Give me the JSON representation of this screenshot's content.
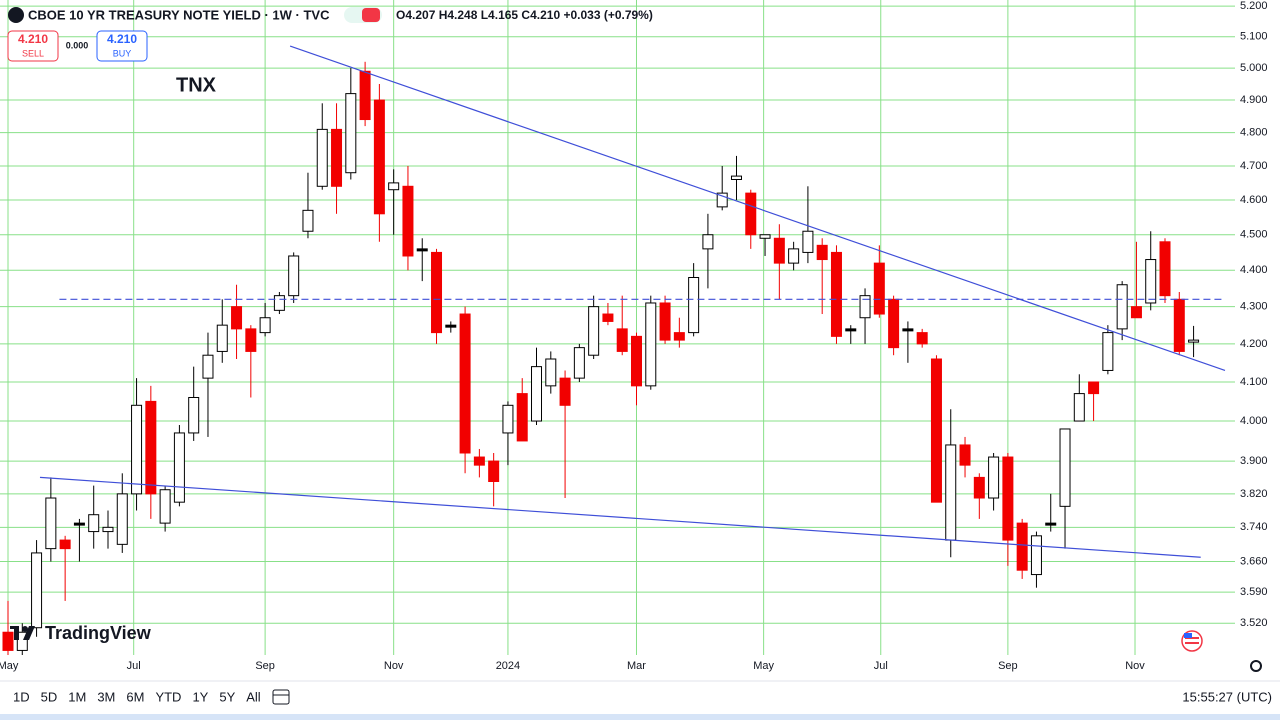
{
  "chart_data": {
    "type": "candlestick",
    "title": "CBOE 10 YR TREASURY NOTE YIELD · 1W · TVC",
    "ohlc_text": "O4.207 H4.248 L4.165 C4.210 +0.033 (+0.79%)",
    "sell_price": "4.210",
    "sell_label": "SELL",
    "spread": "0.000",
    "buy_price": "4.210",
    "buy_label": "BUY",
    "annotation": "TNX",
    "logo": "TradingView",
    "timeframes": [
      "1D",
      "5D",
      "1M",
      "3M",
      "6M",
      "YTD",
      "1Y",
      "5Y",
      "All"
    ],
    "clock": "15:55:27 (UTC)",
    "log_scale": true,
    "grid": true,
    "colors": {
      "up": "#ffffff",
      "down": "#f20000",
      "border": "#000000",
      "grid": "#88e088",
      "trendline": "#3f4fd8"
    },
    "xlim": [
      -0.56,
      85.9
    ],
    "xticks": [
      {
        "value": 0,
        "label": "May"
      },
      {
        "value": 8.8,
        "label": "Jul"
      },
      {
        "value": 18.0,
        "label": "Sep"
      },
      {
        "value": 27.0,
        "label": "Nov"
      },
      {
        "value": 35.0,
        "label": "2024"
      },
      {
        "value": 44.0,
        "label": "Mar"
      },
      {
        "value": 52.9,
        "label": "May"
      },
      {
        "value": 61.1,
        "label": "Jul"
      },
      {
        "value": 70.0,
        "label": "Sep"
      },
      {
        "value": 78.9,
        "label": "Nov"
      }
    ],
    "ylim": [
      3.45,
      5.22
    ],
    "yticks": [
      {
        "value": 5.2,
        "label": "5.200"
      },
      {
        "value": 5.1,
        "label": "5.100"
      },
      {
        "value": 5.0,
        "label": "5.000"
      },
      {
        "value": 4.9,
        "label": "4.900"
      },
      {
        "value": 4.8,
        "label": "4.800"
      },
      {
        "value": 4.7,
        "label": "4.700"
      },
      {
        "value": 4.6,
        "label": "4.600"
      },
      {
        "value": 4.5,
        "label": "4.500"
      },
      {
        "value": 4.4,
        "label": "4.400"
      },
      {
        "value": 4.3,
        "label": "4.300"
      },
      {
        "value": 4.2,
        "label": "4.200"
      },
      {
        "value": 4.1,
        "label": "4.100"
      },
      {
        "value": 4.0,
        "label": "4.000"
      },
      {
        "value": 3.9,
        "label": "3.900"
      },
      {
        "value": 3.82,
        "label": "3.820"
      },
      {
        "value": 3.74,
        "label": "3.740"
      },
      {
        "value": 3.66,
        "label": "3.660"
      },
      {
        "value": 3.59,
        "label": "3.590"
      },
      {
        "value": 3.52,
        "label": "3.520"
      }
    ],
    "ohlc": [
      [
        3.5,
        3.57,
        3.45,
        3.46
      ],
      [
        3.46,
        3.52,
        3.45,
        3.5
      ],
      [
        3.51,
        3.71,
        3.49,
        3.68
      ],
      [
        3.69,
        3.86,
        3.66,
        3.81
      ],
      [
        3.71,
        3.72,
        3.57,
        3.69
      ],
      [
        3.75,
        3.76,
        3.66,
        3.75
      ],
      [
        3.73,
        3.84,
        3.69,
        3.77
      ],
      [
        3.73,
        3.78,
        3.69,
        3.74
      ],
      [
        3.7,
        3.87,
        3.68,
        3.82
      ],
      [
        3.82,
        4.11,
        3.78,
        4.04
      ],
      [
        4.05,
        4.09,
        3.76,
        3.82
      ],
      [
        3.75,
        3.84,
        3.73,
        3.83
      ],
      [
        3.8,
        3.99,
        3.79,
        3.97
      ],
      [
        3.97,
        4.14,
        3.95,
        4.06
      ],
      [
        4.11,
        4.23,
        3.96,
        4.17
      ],
      [
        4.18,
        4.32,
        4.15,
        4.25
      ],
      [
        4.3,
        4.36,
        4.16,
        4.24
      ],
      [
        4.24,
        4.25,
        4.06,
        4.18
      ],
      [
        4.23,
        4.31,
        4.22,
        4.27
      ],
      [
        4.29,
        4.34,
        4.28,
        4.33
      ],
      [
        4.33,
        4.45,
        4.31,
        4.44
      ],
      [
        4.51,
        4.68,
        4.49,
        4.57
      ],
      [
        4.64,
        4.89,
        4.63,
        4.81
      ],
      [
        4.81,
        4.89,
        4.56,
        4.64
      ],
      [
        4.68,
        5.0,
        4.66,
        4.92
      ],
      [
        4.99,
        5.02,
        4.82,
        4.84
      ],
      [
        4.9,
        4.95,
        4.48,
        4.56
      ],
      [
        4.63,
        4.69,
        4.5,
        4.65
      ],
      [
        4.64,
        4.7,
        4.4,
        4.44
      ],
      [
        4.46,
        4.49,
        4.37,
        4.46
      ],
      [
        4.45,
        4.46,
        4.2,
        4.23
      ],
      [
        4.25,
        4.26,
        4.23,
        4.25
      ],
      [
        4.28,
        4.3,
        3.87,
        3.92
      ],
      [
        3.91,
        3.93,
        3.86,
        3.89
      ],
      [
        3.9,
        3.92,
        3.79,
        3.85
      ],
      [
        3.97,
        4.05,
        3.89,
        4.04
      ],
      [
        4.07,
        4.11,
        3.95,
        3.95
      ],
      [
        4.0,
        4.19,
        3.99,
        4.14
      ],
      [
        4.09,
        4.18,
        4.07,
        4.16
      ],
      [
        4.11,
        4.13,
        3.81,
        4.04
      ],
      [
        4.11,
        4.2,
        4.1,
        4.19
      ],
      [
        4.17,
        4.33,
        4.16,
        4.3
      ],
      [
        4.28,
        4.31,
        4.25,
        4.26
      ],
      [
        4.24,
        4.33,
        4.17,
        4.18
      ],
      [
        4.22,
        4.23,
        4.04,
        4.09
      ],
      [
        4.09,
        4.33,
        4.08,
        4.31
      ],
      [
        4.31,
        4.33,
        4.2,
        4.21
      ],
      [
        4.23,
        4.27,
        4.19,
        4.21
      ],
      [
        4.23,
        4.42,
        4.22,
        4.38
      ],
      [
        4.46,
        4.56,
        4.35,
        4.5
      ],
      [
        4.58,
        4.7,
        4.57,
        4.62
      ],
      [
        4.66,
        4.73,
        4.6,
        4.67
      ],
      [
        4.62,
        4.63,
        4.46,
        4.5
      ],
      [
        4.49,
        4.5,
        4.44,
        4.5
      ],
      [
        4.49,
        4.53,
        4.32,
        4.42
      ],
      [
        4.42,
        4.48,
        4.4,
        4.46
      ],
      [
        4.45,
        4.64,
        4.42,
        4.51
      ],
      [
        4.47,
        4.49,
        4.28,
        4.43
      ],
      [
        4.45,
        4.47,
        4.2,
        4.22
      ],
      [
        4.24,
        4.25,
        4.2,
        4.24
      ],
      [
        4.27,
        4.35,
        4.2,
        4.33
      ],
      [
        4.42,
        4.47,
        4.27,
        4.28
      ],
      [
        4.32,
        4.33,
        4.17,
        4.19
      ],
      [
        4.24,
        4.26,
        4.15,
        4.24
      ],
      [
        4.23,
        4.24,
        4.19,
        4.2
      ],
      [
        4.16,
        4.17,
        3.8,
        3.8
      ],
      [
        3.71,
        4.03,
        3.67,
        3.94
      ],
      [
        3.94,
        3.96,
        3.86,
        3.89
      ],
      [
        3.86,
        3.87,
        3.76,
        3.81
      ],
      [
        3.81,
        3.92,
        3.78,
        3.91
      ],
      [
        3.91,
        3.92,
        3.65,
        3.71
      ],
      [
        3.75,
        3.76,
        3.62,
        3.64
      ],
      [
        3.63,
        3.73,
        3.6,
        3.72
      ],
      [
        3.75,
        3.82,
        3.73,
        3.75
      ],
      [
        3.79,
        3.98,
        3.69,
        3.98
      ],
      [
        4.0,
        4.12,
        4.0,
        4.07
      ],
      [
        4.1,
        4.1,
        4.0,
        4.07
      ],
      [
        4.13,
        4.25,
        4.12,
        4.23
      ],
      [
        4.24,
        4.37,
        4.21,
        4.36
      ],
      [
        4.3,
        4.48,
        4.27,
        4.27
      ],
      [
        4.31,
        4.51,
        4.29,
        4.43
      ],
      [
        4.48,
        4.49,
        4.31,
        4.33
      ],
      [
        4.32,
        4.34,
        4.17,
        4.18
      ],
      [
        4.207,
        4.248,
        4.165,
        4.21
      ]
    ],
    "trendlines": [
      {
        "x": [
          19.75,
          85.2
        ],
        "y": [
          5.07,
          4.13
        ],
        "dashed": false
      },
      {
        "x": [
          2.24,
          83.5
        ],
        "y": [
          3.86,
          3.67
        ],
        "dashed": false
      },
      {
        "x": [
          3.6,
          85.2
        ],
        "y": [
          4.32,
          4.32
        ],
        "dashed": true
      }
    ]
  }
}
